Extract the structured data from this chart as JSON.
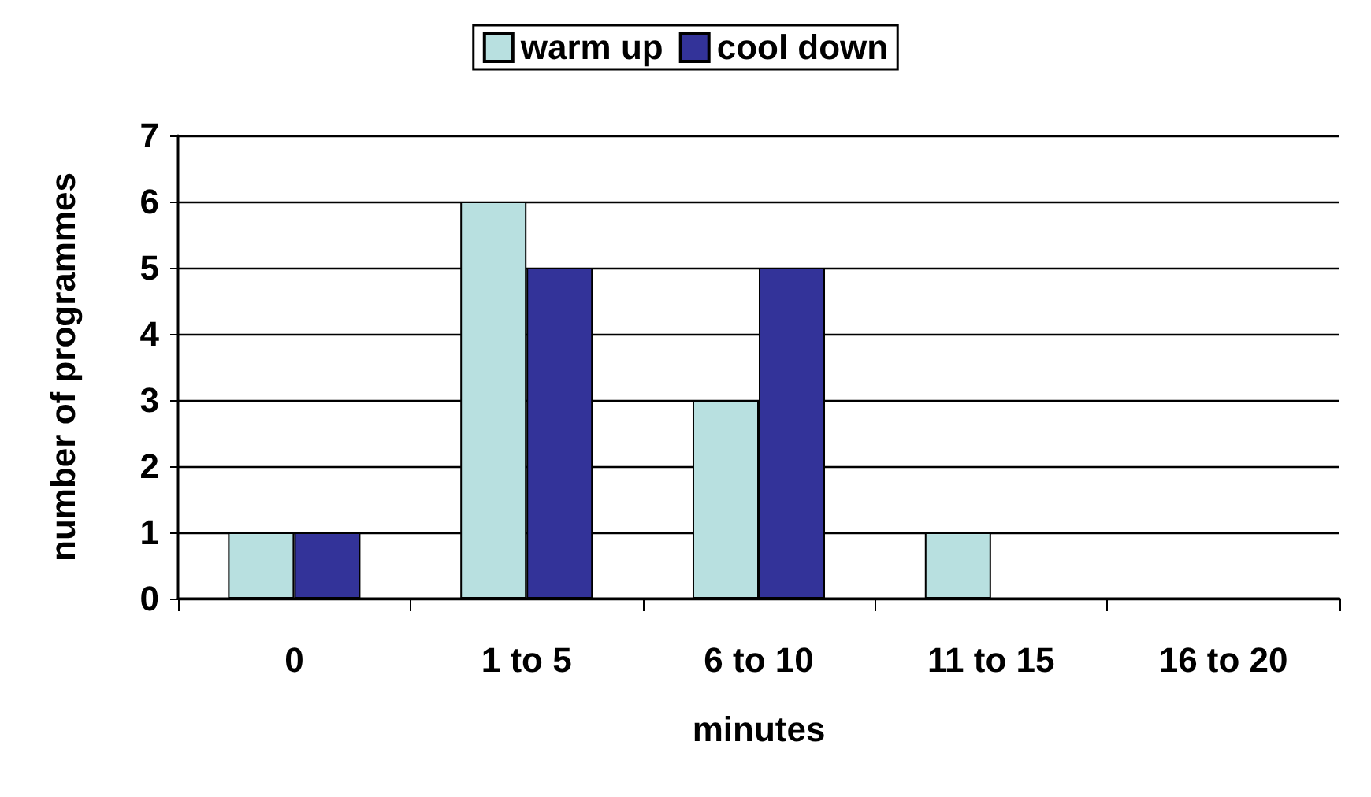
{
  "chart_data": {
    "type": "bar",
    "xlabel": "minutes",
    "ylabel": "number of programmes",
    "categories": [
      "0",
      "1 to 5",
      "6 to 10",
      "11 to 15",
      "16 to 20"
    ],
    "series": [
      {
        "name": "warm up",
        "color": "#b8e0e0",
        "values": [
          1,
          6,
          3,
          1,
          0
        ]
      },
      {
        "name": "cool down",
        "color": "#333399",
        "values": [
          1,
          5,
          5,
          0,
          0
        ]
      }
    ],
    "ylim": [
      0,
      7
    ],
    "yticks": [
      0,
      1,
      2,
      3,
      4,
      5,
      6,
      7
    ],
    "grid": "y",
    "legend": "top"
  }
}
